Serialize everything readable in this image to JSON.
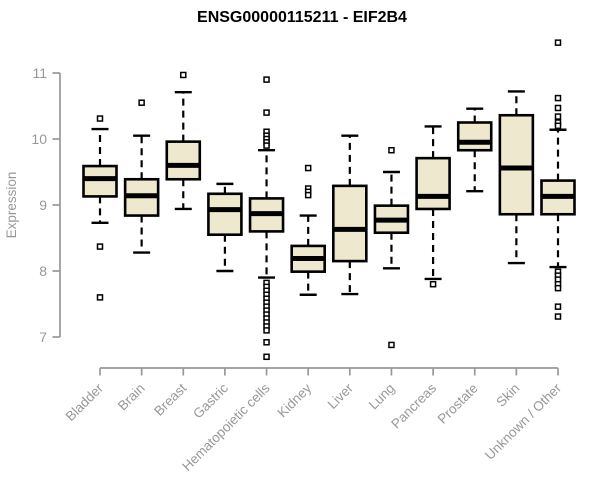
{
  "header": {
    "title": "ENSG00000115211 - EIF2B4"
  },
  "chart_data": {
    "type": "boxplot",
    "title": "ENSG00000115211 - EIF2B4",
    "xlabel": "",
    "ylabel": "Expression",
    "yticks": [
      7,
      8,
      9,
      10,
      11
    ],
    "ylim": [
      6.6,
      11.6
    ],
    "grid": false,
    "legend": "none",
    "colors": {
      "box_fill": "#EDE8CE",
      "box_stroke": "#000000",
      "median": "#000000",
      "whisker": "#000000",
      "outlier_stroke": "#000000",
      "outlier_fill": "#ffffff",
      "axis": "#989898",
      "title": "#000000",
      "background": "#ffffff"
    },
    "categories": [
      "Bladder",
      "Brain",
      "Breast",
      "Gastric",
      "Hematopoietic cells",
      "Kidney",
      "Liver",
      "Lung",
      "Pancreas",
      "Prostate",
      "Skin",
      "Unknown / Other"
    ],
    "series": [
      {
        "category": "Bladder",
        "low": 8.73,
        "q1": 9.13,
        "median": 9.4,
        "q3": 9.59,
        "high": 10.15,
        "outliers": [
          10.31,
          8.37,
          7.6
        ]
      },
      {
        "category": "Brain",
        "low": 8.28,
        "q1": 8.84,
        "median": 9.14,
        "q3": 9.39,
        "high": 10.05,
        "outliers": [
          10.55
        ]
      },
      {
        "category": "Breast",
        "low": 8.94,
        "q1": 9.39,
        "median": 9.6,
        "q3": 9.96,
        "high": 10.71,
        "outliers": [
          10.97
        ]
      },
      {
        "category": "Gastric",
        "low": 8.0,
        "q1": 8.55,
        "median": 8.93,
        "q3": 9.17,
        "high": 9.32,
        "outliers": []
      },
      {
        "category": "Hematopoietic cells",
        "low": 7.9,
        "q1": 8.6,
        "median": 8.87,
        "q3": 9.1,
        "high": 9.83,
        "outliers": [
          10.9,
          10.4,
          10.11,
          10.05,
          10.0,
          9.95,
          9.9,
          7.82,
          7.76,
          7.7,
          7.64,
          7.58,
          7.52,
          7.46,
          7.4,
          7.34,
          7.28,
          7.22,
          7.16,
          7.1,
          6.92,
          6.7
        ]
      },
      {
        "category": "Kidney",
        "low": 7.64,
        "q1": 7.99,
        "median": 8.19,
        "q3": 8.38,
        "high": 8.84,
        "outliers": [
          9.56,
          9.25,
          9.2,
          9.15
        ]
      },
      {
        "category": "Liver",
        "low": 7.65,
        "q1": 8.15,
        "median": 8.63,
        "q3": 9.29,
        "high": 10.05,
        "outliers": []
      },
      {
        "category": "Lung",
        "low": 8.04,
        "q1": 8.58,
        "median": 8.77,
        "q3": 8.99,
        "high": 9.5,
        "outliers": [
          9.83,
          6.88
        ]
      },
      {
        "category": "Pancreas",
        "low": 7.88,
        "q1": 8.94,
        "median": 9.13,
        "q3": 9.71,
        "high": 10.19,
        "outliers": [
          7.8
        ]
      },
      {
        "category": "Prostate",
        "low": 9.21,
        "q1": 9.83,
        "median": 9.95,
        "q3": 10.25,
        "high": 10.46,
        "outliers": []
      },
      {
        "category": "Skin",
        "low": 8.12,
        "q1": 8.86,
        "median": 9.56,
        "q3": 10.36,
        "high": 10.72,
        "outliers": []
      },
      {
        "category": "Unknown / Other",
        "low": 8.06,
        "q1": 8.86,
        "median": 9.13,
        "q3": 9.37,
        "high": 10.14,
        "outliers": [
          11.46,
          10.62,
          10.47,
          10.34,
          10.25,
          10.2,
          7.99,
          7.93,
          7.87,
          7.8,
          7.74,
          7.46,
          7.31
        ]
      }
    ]
  }
}
